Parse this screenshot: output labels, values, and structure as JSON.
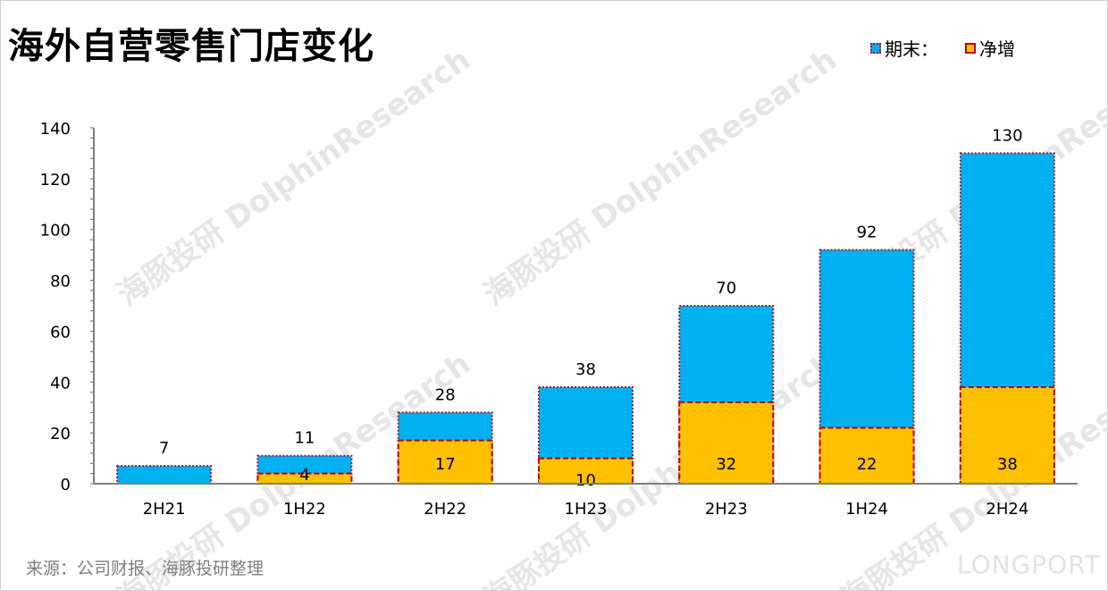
{
  "title": "海外自营零售门店变化",
  "legend": {
    "end_label": "期末：",
    "net_label": "净增"
  },
  "source": "来源：公司财报、海豚投研整理",
  "watermarks": {
    "brand": "海豚投研 DolphinResearch",
    "logo": "LONGPORT"
  },
  "colors": {
    "end": "#00b0f0",
    "net": "#ffc000",
    "end_border": "#9b1c3a",
    "net_border": "#c00000"
  },
  "chart_data": {
    "type": "bar",
    "title": "海外自营零售门店变化",
    "categories": [
      "2H21",
      "1H22",
      "2H22",
      "1H23",
      "2H23",
      "1H24",
      "2H24"
    ],
    "series": [
      {
        "name": "期末",
        "values": [
          7,
          11,
          28,
          38,
          70,
          92,
          130
        ]
      },
      {
        "name": "净增",
        "values": [
          null,
          4,
          17,
          10,
          32,
          22,
          38
        ]
      }
    ],
    "ylim": [
      0,
      140
    ],
    "yticks": [
      0,
      20,
      40,
      60,
      80,
      100,
      120,
      140
    ],
    "xlabel": "",
    "ylabel": "",
    "grid": false,
    "legend_position": "top-right",
    "overlap": true
  }
}
